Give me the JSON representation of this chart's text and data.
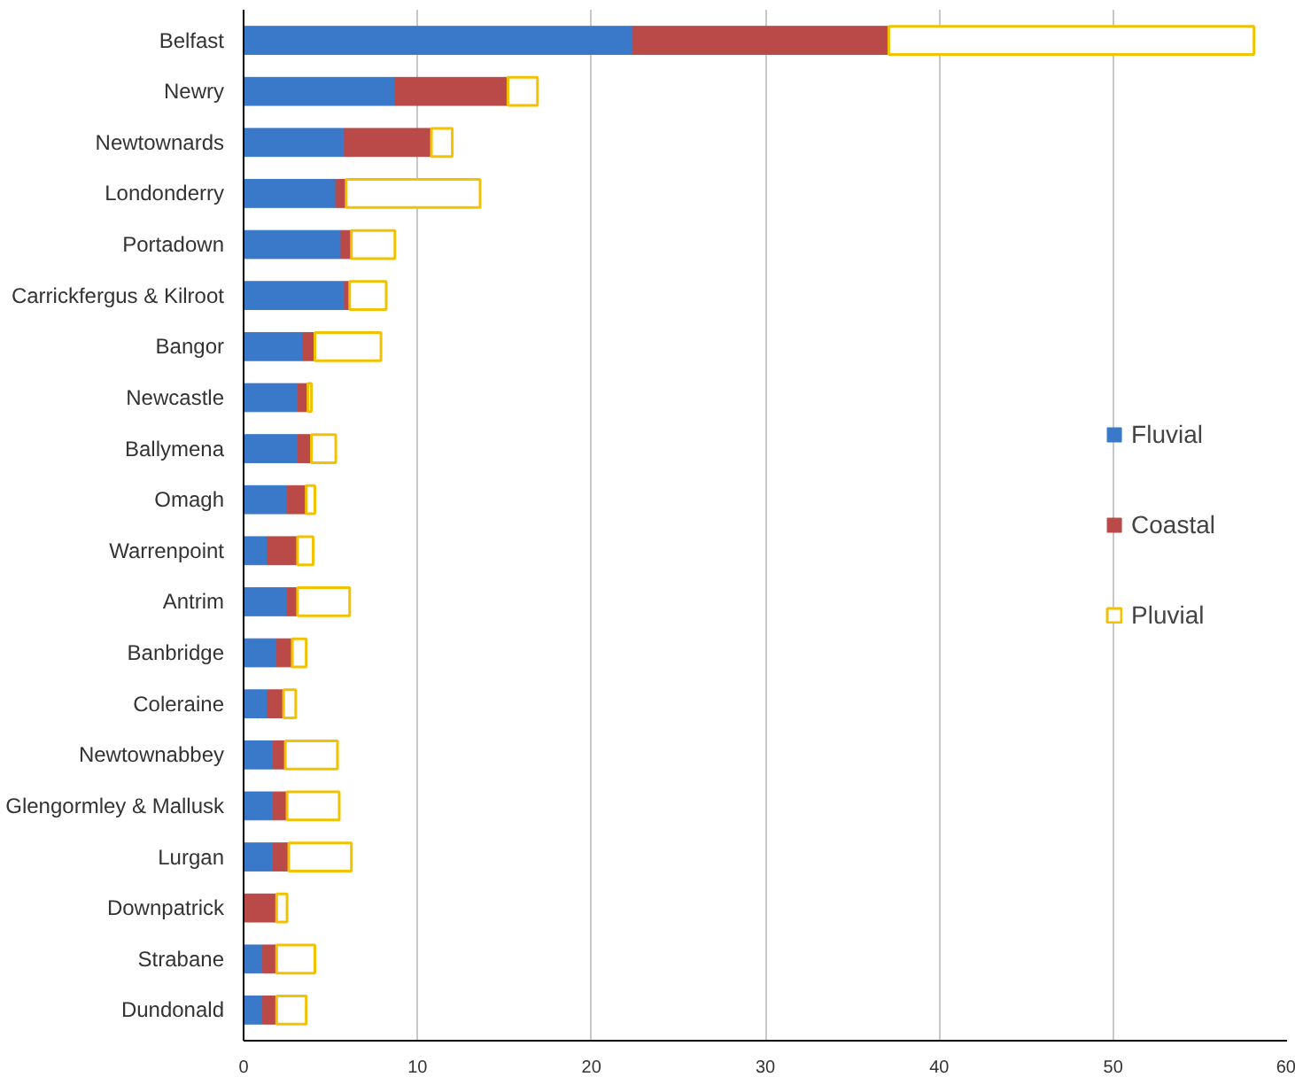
{
  "chart_data": {
    "type": "bar",
    "orientation": "horizontal",
    "stacked": true,
    "categories": [
      "Belfast",
      "Newry",
      "Newtownards",
      "Londonderry",
      "Portadown",
      "Carrickfergus & Kilroot",
      "Bangor",
      "Newcastle",
      "Ballymena",
      "Omagh",
      "Warrenpoint",
      "Antrim",
      "Banbridge",
      "Coleraine",
      "Newtownabbey",
      "Glengormley & Mallusk",
      "Lurgan",
      "Downpatrick",
      "Strabane",
      "Dundonald"
    ],
    "series": [
      {
        "name": "Fluvial",
        "color": "#3a78c9",
        "values": [
          22.4,
          8.7,
          5.8,
          5.3,
          5.6,
          5.8,
          3.4,
          3.1,
          3.1,
          2.5,
          1.4,
          2.5,
          1.9,
          1.4,
          1.7,
          1.7,
          1.7,
          0,
          1.1,
          1.1
        ]
      },
      {
        "name": "Coastal",
        "color": "#b94a48",
        "values": [
          14.7,
          6.5,
          5.0,
          0.6,
          0.6,
          0.3,
          0.7,
          0.6,
          0.8,
          1.1,
          1.7,
          0.6,
          0.9,
          0.9,
          0.7,
          0.8,
          0.9,
          1.9,
          0.8,
          0.8
        ]
      },
      {
        "name": "Pluvial",
        "color": "#f2c200",
        "values": [
          21.0,
          1.7,
          1.2,
          7.7,
          2.5,
          2.1,
          3.8,
          0.2,
          1.4,
          0.5,
          0.9,
          3.0,
          0.8,
          0.7,
          3.0,
          3.0,
          3.6,
          0.6,
          2.2,
          1.7
        ]
      }
    ],
    "xlim": [
      0,
      60
    ],
    "xticks": [
      0,
      10,
      20,
      30,
      40,
      50,
      60
    ],
    "grid": "x",
    "legend": "right"
  }
}
